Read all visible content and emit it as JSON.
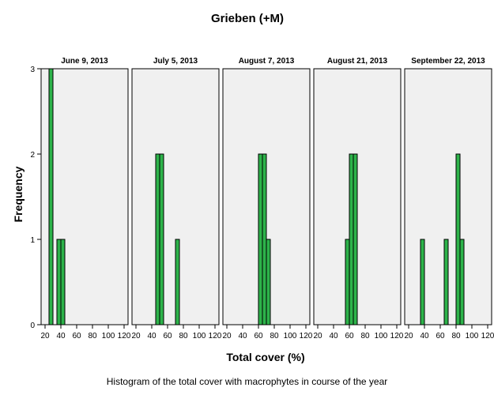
{
  "chart_data": {
    "type": "bar",
    "title": "Grieben (+M)",
    "xlabel": "Total cover (%)",
    "ylabel": "Frequency",
    "ylim": [
      0,
      3
    ],
    "yticks": [
      0,
      1,
      2,
      3
    ],
    "xlim": [
      15,
      125
    ],
    "xticks": [
      20,
      40,
      60,
      80,
      100,
      120
    ],
    "bin_width": 5,
    "colors": {
      "bar": "#2db34a",
      "panel_bg": "#f0f0f0",
      "frame": "#000000"
    },
    "grid": false,
    "panels": [
      {
        "label": "June 9, 2013",
        "bins": [
          {
            "x_start": 25,
            "x_end": 30,
            "value": 3
          },
          {
            "x_start": 35,
            "x_end": 40,
            "value": 1
          },
          {
            "x_start": 40,
            "x_end": 45,
            "value": 1
          }
        ]
      },
      {
        "label": "July 5, 2013",
        "bins": [
          {
            "x_start": 45,
            "x_end": 50,
            "value": 2
          },
          {
            "x_start": 50,
            "x_end": 55,
            "value": 2
          },
          {
            "x_start": 70,
            "x_end": 75,
            "value": 1
          }
        ]
      },
      {
        "label": "August 7, 2013",
        "bins": [
          {
            "x_start": 60,
            "x_end": 65,
            "value": 2
          },
          {
            "x_start": 65,
            "x_end": 70,
            "value": 2
          },
          {
            "x_start": 70,
            "x_end": 75,
            "value": 1
          }
        ]
      },
      {
        "label": "August 21, 2013",
        "bins": [
          {
            "x_start": 55,
            "x_end": 60,
            "value": 1
          },
          {
            "x_start": 60,
            "x_end": 65,
            "value": 2
          },
          {
            "x_start": 65,
            "x_end": 70,
            "value": 2
          }
        ]
      },
      {
        "label": "September 22, 2013",
        "bins": [
          {
            "x_start": 35,
            "x_end": 40,
            "value": 1
          },
          {
            "x_start": 65,
            "x_end": 70,
            "value": 1
          },
          {
            "x_start": 80,
            "x_end": 85,
            "value": 2
          },
          {
            "x_start": 85,
            "x_end": 90,
            "value": 1
          }
        ]
      }
    ]
  },
  "caption": "Histogram of the total cover with macrophytes in course of the year"
}
